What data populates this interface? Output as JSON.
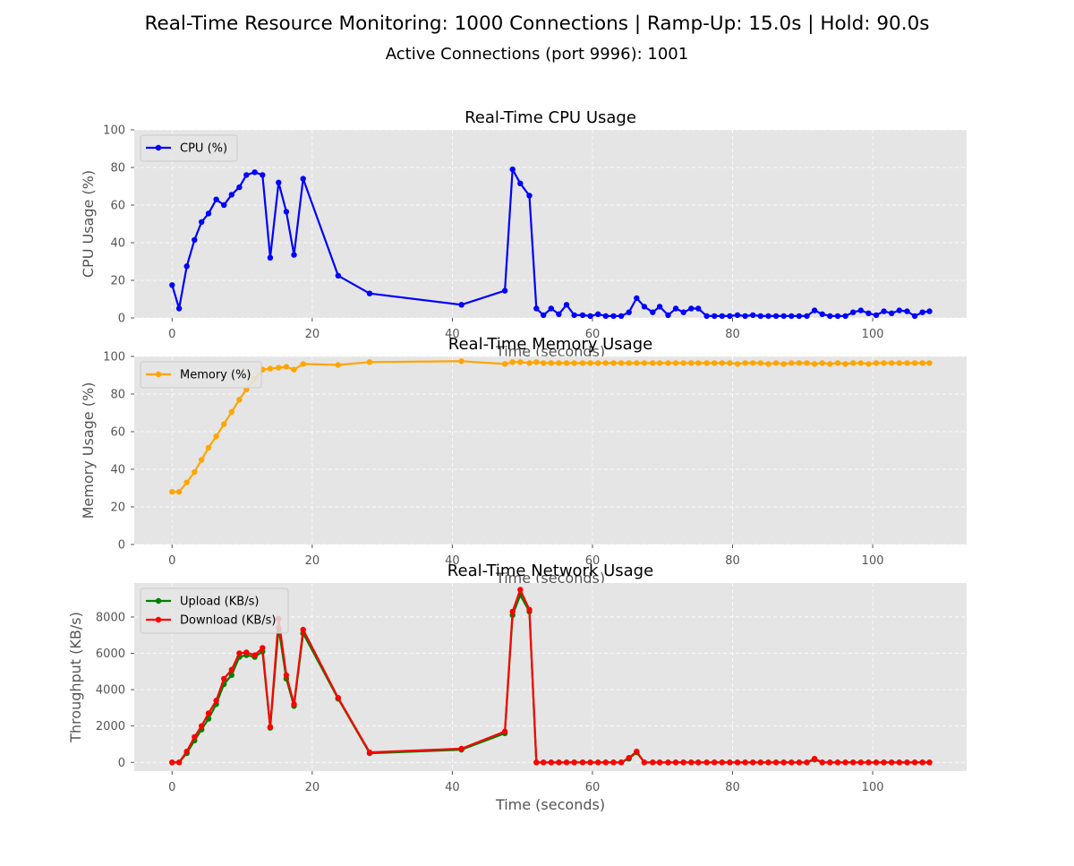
{
  "figure": {
    "suptitle": "Real-Time Resource Monitoring: 1000 Connections | Ramp-Up: 15.0s | Hold: 90.0s",
    "subtitle": "Active Connections (port 9996): 1001"
  },
  "chart_data": [
    {
      "id": "cpu",
      "type": "line",
      "title": "Real-Time CPU Usage",
      "xlabel": "Time (seconds)",
      "ylabel": "CPU Usage (%)",
      "xlim": [
        -5.4,
        113.4
      ],
      "ylim": [
        0,
        100
      ],
      "xticks": [
        0,
        20,
        40,
        60,
        80,
        100
      ],
      "yticks": [
        0,
        20,
        40,
        60,
        80,
        100
      ],
      "grid": true,
      "legend": "upper left",
      "series": [
        {
          "name": "CPU (%)",
          "color": "#0000ff",
          "x": [
            0.0,
            1.0,
            2.1,
            3.2,
            4.2,
            5.2,
            6.3,
            7.4,
            8.5,
            9.6,
            10.6,
            11.8,
            12.9,
            14.0,
            15.2,
            16.3,
            17.4,
            18.7,
            23.7,
            28.2,
            41.3,
            47.5,
            48.6,
            49.7,
            51.0,
            52.0,
            53.0,
            54.1,
            55.2,
            56.3,
            57.4,
            58.6,
            59.7,
            60.8,
            61.9,
            63.0,
            64.1,
            65.2,
            66.3,
            67.4,
            68.6,
            69.6,
            70.8,
            71.9,
            73.0,
            74.1,
            75.1,
            76.3,
            77.4,
            78.5,
            79.6,
            80.7,
            81.8,
            82.9,
            84.0,
            85.1,
            86.2,
            87.3,
            88.4,
            89.5,
            90.6,
            91.7,
            92.8,
            93.9,
            95.0,
            96.1,
            97.2,
            98.3,
            99.4,
            100.5,
            101.6,
            102.7,
            103.8,
            104.9,
            106.0,
            107.1,
            108.1
          ],
          "y": [
            17.5,
            5.0,
            27.5,
            41.5,
            51.0,
            55.5,
            63.0,
            60.0,
            65.5,
            69.5,
            76.0,
            77.5,
            76.0,
            32.0,
            72.0,
            56.5,
            33.5,
            74.0,
            22.5,
            13.0,
            7.0,
            14.5,
            79.0,
            71.5,
            65.0,
            5.0,
            1.5,
            5.0,
            2.0,
            7.0,
            1.5,
            1.5,
            1.0,
            2.0,
            1.0,
            1.0,
            1.0,
            3.0,
            10.5,
            6.0,
            3.0,
            6.0,
            1.5,
            5.0,
            3.0,
            5.0,
            5.0,
            1.0,
            1.0,
            1.0,
            1.0,
            1.5,
            1.0,
            1.5,
            1.0,
            1.0,
            1.0,
            1.0,
            1.0,
            1.0,
            1.0,
            4.0,
            2.0,
            1.0,
            1.0,
            1.0,
            3.0,
            4.0,
            2.5,
            1.5,
            3.5,
            2.5,
            4.0,
            3.5,
            1.0,
            3.0,
            3.5
          ]
        }
      ]
    },
    {
      "id": "memory",
      "type": "line",
      "title": "Real-Time Memory Usage",
      "xlabel": "Time (seconds)",
      "ylabel": "Memory Usage (%)",
      "xlim": [
        -5.4,
        113.4
      ],
      "ylim": [
        0,
        100
      ],
      "xticks": [
        0,
        20,
        40,
        60,
        80,
        100
      ],
      "yticks": [
        0,
        20,
        40,
        60,
        80,
        100
      ],
      "grid": true,
      "legend": "upper left",
      "series": [
        {
          "name": "Memory (%)",
          "color": "#ffa500",
          "x": [
            0.0,
            1.0,
            2.1,
            3.2,
            4.2,
            5.2,
            6.3,
            7.4,
            8.5,
            9.6,
            10.6,
            11.8,
            12.9,
            14.0,
            15.2,
            16.3,
            17.4,
            18.7,
            23.7,
            28.2,
            41.3,
            47.5,
            48.6,
            49.7,
            51.0,
            52.0,
            53.0,
            54.1,
            55.2,
            56.3,
            57.4,
            58.6,
            59.7,
            60.8,
            61.9,
            63.0,
            64.1,
            65.2,
            66.3,
            67.4,
            68.6,
            69.6,
            70.8,
            71.9,
            73.0,
            74.1,
            75.1,
            76.3,
            77.4,
            78.5,
            79.6,
            80.7,
            81.8,
            82.9,
            84.0,
            85.1,
            86.2,
            87.3,
            88.4,
            89.5,
            90.6,
            91.7,
            92.8,
            93.9,
            95.0,
            96.1,
            97.2,
            98.3,
            99.4,
            100.5,
            101.6,
            102.7,
            103.8,
            104.9,
            106.0,
            107.1,
            108.1
          ],
          "y": [
            28.0,
            28.0,
            33.0,
            38.5,
            45.0,
            51.5,
            57.5,
            64.0,
            70.5,
            77.0,
            82.5,
            88.0,
            93.0,
            93.5,
            94.0,
            94.5,
            93.0,
            96.0,
            95.5,
            97.0,
            97.5,
            96.0,
            97.0,
            97.0,
            96.5,
            97.0,
            96.5,
            96.5,
            96.5,
            96.5,
            96.5,
            96.5,
            96.5,
            96.5,
            96.5,
            96.5,
            96.5,
            96.5,
            96.5,
            96.5,
            96.5,
            96.5,
            96.5,
            96.5,
            96.5,
            96.5,
            96.5,
            96.5,
            96.5,
            96.5,
            96.5,
            96.0,
            96.5,
            96.5,
            96.5,
            96.0,
            96.5,
            96.0,
            96.5,
            96.5,
            96.5,
            96.0,
            96.5,
            96.0,
            96.5,
            96.0,
            96.5,
            96.5,
            96.0,
            96.5,
            96.5,
            96.5,
            96.5,
            96.5,
            96.5,
            96.5,
            96.5
          ]
        }
      ]
    },
    {
      "id": "network",
      "type": "line",
      "title": "Real-Time Network Usage",
      "xlabel": "Time (seconds)",
      "ylabel": "Throughput (KB/s)",
      "xlim": [
        -5.4,
        113.4
      ],
      "ylim": [
        -480,
        9870
      ],
      "xticks": [
        0,
        20,
        40,
        60,
        80,
        100
      ],
      "yticks": [
        0,
        2000,
        4000,
        6000,
        8000
      ],
      "grid": true,
      "legend": "upper left",
      "series": [
        {
          "name": "Upload (KB/s)",
          "color": "#008000",
          "x": [
            0.0,
            1.0,
            2.1,
            3.2,
            4.2,
            5.2,
            6.3,
            7.4,
            8.5,
            9.6,
            10.6,
            11.8,
            12.9,
            14.0,
            15.2,
            16.3,
            17.4,
            18.7,
            23.7,
            28.2,
            41.3,
            47.5,
            48.6,
            49.7,
            51.0,
            52.0,
            53.0,
            54.1,
            55.2,
            56.3,
            57.4,
            58.6,
            59.7,
            60.8,
            61.9,
            63.0,
            64.1,
            65.2,
            66.3,
            67.4,
            68.6,
            69.6,
            70.8,
            71.9,
            73.0,
            74.1,
            75.1,
            76.3,
            77.4,
            78.5,
            79.6,
            80.7,
            81.8,
            82.9,
            84.0,
            85.1,
            86.2,
            87.3,
            88.4,
            89.5,
            90.6,
            91.7,
            92.8,
            93.9,
            95.0,
            96.1,
            97.2,
            98.3,
            99.4,
            100.5,
            101.6,
            102.7,
            103.8,
            104.9,
            106.0,
            107.1,
            108.1
          ],
          "y": [
            0,
            0,
            500,
            1200,
            1800,
            2400,
            3200,
            4300,
            4800,
            5800,
            5900,
            5800,
            6100,
            1900,
            7400,
            4600,
            3100,
            7100,
            3500,
            500,
            700,
            1600,
            8100,
            9200,
            8300,
            0,
            0,
            0,
            0,
            0,
            0,
            0,
            0,
            0,
            0,
            0,
            0,
            200,
            550,
            0,
            0,
            0,
            0,
            0,
            0,
            0,
            0,
            0,
            0,
            0,
            0,
            0,
            0,
            0,
            0,
            0,
            0,
            0,
            0,
            0,
            0,
            150,
            0,
            0,
            0,
            0,
            0,
            0,
            0,
            0,
            0,
            0,
            0,
            0,
            0,
            0,
            0
          ]
        },
        {
          "name": "Download (KB/s)",
          "color": "#ff0000",
          "x": [
            0.0,
            1.0,
            2.1,
            3.2,
            4.2,
            5.2,
            6.3,
            7.4,
            8.5,
            9.6,
            10.6,
            11.8,
            12.9,
            14.0,
            15.2,
            16.3,
            17.4,
            18.7,
            23.7,
            28.2,
            41.3,
            47.5,
            48.6,
            49.7,
            51.0,
            52.0,
            53.0,
            54.1,
            55.2,
            56.3,
            57.4,
            58.6,
            59.7,
            60.8,
            61.9,
            63.0,
            64.1,
            65.2,
            66.3,
            67.4,
            68.6,
            69.6,
            70.8,
            71.9,
            73.0,
            74.1,
            75.1,
            76.3,
            77.4,
            78.5,
            79.6,
            80.7,
            81.8,
            82.9,
            84.0,
            85.1,
            86.2,
            87.3,
            88.4,
            89.5,
            90.6,
            91.7,
            92.8,
            93.9,
            95.0,
            96.1,
            97.2,
            98.3,
            99.4,
            100.5,
            101.6,
            102.7,
            103.8,
            104.9,
            106.0,
            107.1,
            108.1
          ],
          "y": [
            0,
            0,
            600,
            1400,
            2000,
            2700,
            3400,
            4600,
            5100,
            6000,
            6050,
            5900,
            6300,
            1950,
            7900,
            4800,
            3200,
            7300,
            3550,
            550,
            750,
            1700,
            8300,
            9500,
            8400,
            0,
            0,
            0,
            0,
            0,
            0,
            0,
            0,
            0,
            0,
            0,
            0,
            250,
            600,
            0,
            0,
            0,
            0,
            0,
            0,
            0,
            0,
            0,
            0,
            0,
            0,
            0,
            0,
            0,
            0,
            0,
            0,
            0,
            0,
            0,
            0,
            200,
            0,
            0,
            0,
            0,
            0,
            0,
            0,
            0,
            0,
            0,
            0,
            0,
            0,
            0,
            0
          ]
        }
      ]
    }
  ]
}
